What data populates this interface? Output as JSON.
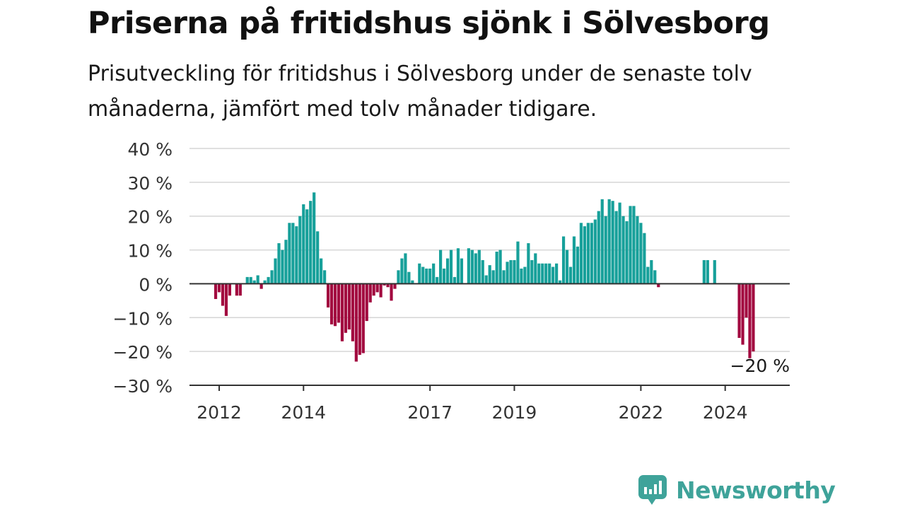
{
  "title": "Priserna på fritidshus sjönk i Sölvesborg",
  "subtitle": "Prisutveckling för fritidshus i Sölvesborg under de senaste tolv månaderna, jämfört med tolv månader tidigare.",
  "brand": {
    "name": "Newsworthy",
    "icon": "newsworthy-logo-icon",
    "color": "#3fa39a"
  },
  "colors": {
    "positive": "#17a09a",
    "negative": "#a2093f",
    "grid": "#d6d6d6",
    "zero": "#333333"
  },
  "chart_data": {
    "type": "bar",
    "ylabel": "",
    "xlabel": "",
    "ylim": [
      -30,
      40
    ],
    "yticks": [
      {
        "value": 40,
        "label": "40 %"
      },
      {
        "value": 30,
        "label": "30 %"
      },
      {
        "value": 20,
        "label": "20 %"
      },
      {
        "value": 10,
        "label": "10 %"
      },
      {
        "value": 0,
        "label": "0 %"
      },
      {
        "value": -10,
        "label": "−10 %"
      },
      {
        "value": -20,
        "label": "−20 %"
      },
      {
        "value": -30,
        "label": "−30 %"
      }
    ],
    "xticks": [
      {
        "year": 2012,
        "label": "2012"
      },
      {
        "year": 2014,
        "label": "2014"
      },
      {
        "year": 2017,
        "label": "2017"
      },
      {
        "year": 2019,
        "label": "2019"
      },
      {
        "year": 2022,
        "label": "2022"
      },
      {
        "year": 2024,
        "label": "2024"
      }
    ],
    "series": [
      {
        "start": "2011-12",
        "values": [
          -4.5,
          -2.5,
          -6.5,
          -9.5,
          -3.5,
          0,
          -3.5,
          -3.5,
          0,
          2,
          2,
          1,
          2.5,
          -1.5,
          1,
          2,
          4,
          7.5,
          12,
          10,
          13,
          18,
          18,
          17,
          20,
          23.5,
          22,
          24.5,
          27,
          15.5,
          7.5,
          4,
          -7,
          -12,
          -12.5,
          -11.5,
          -17,
          -14.5,
          -13.5,
          -17,
          -23,
          -21,
          -20.5,
          -11,
          -5.5,
          -3.5,
          -2.5,
          -4,
          -0.5,
          -1,
          -5,
          -1.5,
          4,
          7.5,
          9,
          3.5,
          1,
          0,
          6,
          5,
          4.5,
          4.5,
          6,
          2,
          10,
          4.5,
          7.5,
          10,
          2,
          10.5,
          7.5,
          0,
          10.5,
          10,
          9,
          10,
          7,
          2.5,
          5.5,
          4,
          9.5,
          10,
          4,
          6.5,
          7,
          7,
          12.5,
          4.5,
          5,
          12,
          7,
          9,
          6,
          6,
          6,
          6,
          5,
          6,
          1,
          14,
          10,
          5,
          14,
          11,
          18,
          17,
          18,
          18,
          19,
          21.5,
          25,
          20,
          25,
          24.5,
          21.5,
          24,
          20,
          18.5,
          23,
          23,
          20,
          18,
          15,
          5,
          7,
          4,
          -1
        ]
      },
      {
        "start": "2023-07",
        "values": [
          7,
          7,
          0,
          7
        ]
      },
      {
        "start": "2024-05",
        "values": [
          -16,
          -18,
          -10,
          -22,
          -20
        ]
      }
    ],
    "annotation": {
      "label": "−20 %"
    }
  }
}
